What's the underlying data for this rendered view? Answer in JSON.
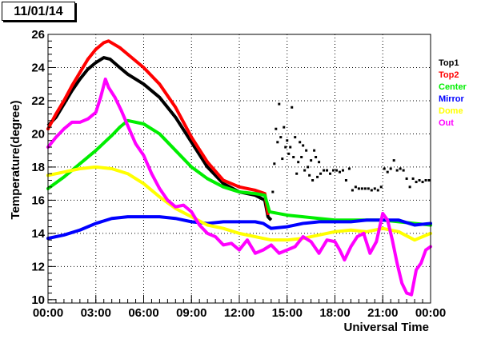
{
  "date_label": "11/01/14",
  "chart_data": {
    "type": "scatter",
    "title": "",
    "xlabel": "Universal Time",
    "ylabel": "Temperature(degree)",
    "xlim": [
      0,
      24
    ],
    "ylim": [
      9.8,
      26
    ],
    "x_ticks": [
      {
        "value": 0,
        "label": "00:00"
      },
      {
        "value": 3,
        "label": "03:00"
      },
      {
        "value": 6,
        "label": "06:00"
      },
      {
        "value": 9,
        "label": "09:00"
      },
      {
        "value": 12,
        "label": "12:00"
      },
      {
        "value": 15,
        "label": "15:00"
      },
      {
        "value": 18,
        "label": "18:00"
      },
      {
        "value": 21,
        "label": "21:00"
      },
      {
        "value": 24,
        "label": "00:00"
      }
    ],
    "y_ticks": [
      10,
      12,
      14,
      16,
      18,
      20,
      22,
      24,
      26
    ],
    "grid": {
      "x": true,
      "y": true,
      "style": "dotted"
    },
    "legend_position": "right",
    "series": [
      {
        "name": "Top1",
        "color": "#000000",
        "x": [
          0,
          0.5,
          1,
          1.5,
          2,
          2.5,
          3,
          3.5,
          3.9,
          4.5,
          5,
          6,
          7,
          8,
          9,
          10,
          11,
          12,
          13,
          13.6,
          13.8,
          13.9,
          14.0,
          14.1,
          14.2,
          14.3,
          14.4,
          14.5,
          14.6,
          14.7,
          14.8,
          14.9,
          15.0,
          15.1,
          15.2,
          15.3,
          15.4,
          15.5,
          15.6,
          15.7,
          15.8,
          15.9,
          16.0,
          16.1,
          16.2,
          16.3,
          16.4,
          16.5,
          16.6,
          16.7,
          16.8,
          16.9,
          17.0,
          17.1,
          17.3,
          17.5,
          17.7,
          17.9,
          18.1,
          18.3,
          18.5,
          18.7,
          18.9,
          19.1,
          19.3,
          19.5,
          19.7,
          19.9,
          20.1,
          20.3,
          20.5,
          20.7,
          20.9,
          21.1,
          21.3,
          21.5,
          21.7,
          21.9,
          22.1,
          22.3,
          22.5,
          22.7,
          22.9,
          23.1,
          23.3,
          23.5,
          23.7,
          23.9
        ],
        "y": [
          20.5,
          21.0,
          21.8,
          22.6,
          23.3,
          23.9,
          24.3,
          24.6,
          24.5,
          24.0,
          23.6,
          23.0,
          22.2,
          21.0,
          19.5,
          18.0,
          17.0,
          16.5,
          16.3,
          16.0,
          15.0,
          14.9,
          14.8,
          16.5,
          18.2,
          20.3,
          19.5,
          21.8,
          19.8,
          18.5,
          20.4,
          19.2,
          19.6,
          18.8,
          19.2,
          21.6,
          18.6,
          19.8,
          17.6,
          18.3,
          19.5,
          18.6,
          19.3,
          17.8,
          19.0,
          18.0,
          17.5,
          18.4,
          17.2,
          19.0,
          18.6,
          17.4,
          18.3,
          17.6,
          17.8,
          17.8,
          17.6,
          17.8,
          17.8,
          17.7,
          17.8,
          17.2,
          17.9,
          16.6,
          16.8,
          16.7,
          16.7,
          16.7,
          16.7,
          16.6,
          16.7,
          16.6,
          16.8,
          17.9,
          17.7,
          17.9,
          18.4,
          17.8,
          17.9,
          17.8,
          17.3,
          16.8,
          17.3,
          17.1,
          17.2,
          17.1,
          17.2,
          17.2
        ]
      },
      {
        "name": "Top2",
        "color": "#ff0000",
        "x": [
          0,
          0.5,
          1,
          1.5,
          2,
          2.5,
          3,
          3.5,
          3.8,
          4.5,
          5,
          6,
          7,
          8,
          9,
          10,
          11,
          12,
          13,
          13.6,
          13.8
        ],
        "y": [
          20.3,
          21.2,
          22.0,
          22.9,
          23.7,
          24.5,
          25.1,
          25.5,
          25.6,
          25.2,
          24.8,
          24.0,
          23.0,
          21.6,
          19.8,
          18.3,
          17.2,
          16.8,
          16.6,
          16.4,
          15.2
        ]
      },
      {
        "name": "Center",
        "color": "#00ee00",
        "x": [
          0,
          1,
          2,
          3,
          4,
          4.5,
          5,
          6,
          7,
          8,
          9,
          10,
          11,
          12,
          13,
          13.6,
          13.9,
          15,
          16,
          17,
          18,
          19,
          20,
          21,
          22,
          23,
          24
        ],
        "y": [
          16.7,
          17.4,
          18.2,
          19.0,
          19.9,
          20.4,
          20.8,
          20.6,
          20.0,
          19.0,
          18.0,
          17.3,
          16.8,
          16.5,
          16.4,
          16.3,
          15.3,
          15.1,
          15.0,
          14.9,
          14.8,
          14.8,
          14.8,
          14.8,
          14.7,
          14.6,
          14.5
        ]
      },
      {
        "name": "Mirror",
        "color": "#0000ff",
        "x": [
          0,
          1,
          2,
          3,
          4,
          5,
          6,
          7,
          8,
          9,
          10,
          11,
          12,
          13,
          13.5,
          14,
          15,
          16,
          17,
          18,
          19,
          20,
          21,
          22,
          23,
          24
        ],
        "y": [
          13.7,
          13.9,
          14.2,
          14.6,
          14.9,
          15.0,
          15.0,
          15.0,
          14.9,
          14.7,
          14.6,
          14.7,
          14.7,
          14.7,
          14.6,
          14.3,
          14.4,
          14.6,
          14.7,
          14.7,
          14.7,
          14.8,
          14.8,
          14.8,
          14.5,
          14.6
        ]
      },
      {
        "name": "Dome",
        "color": "#ffff00",
        "x": [
          0,
          1,
          2,
          3,
          4,
          5,
          6,
          7,
          8,
          9,
          10,
          11,
          12,
          13,
          14,
          15,
          16,
          17,
          18,
          19,
          20,
          21,
          22,
          23,
          24
        ],
        "y": [
          17.5,
          17.7,
          17.9,
          18.0,
          17.9,
          17.6,
          17.0,
          16.2,
          15.5,
          15.0,
          14.5,
          14.3,
          14.0,
          13.8,
          13.6,
          13.6,
          13.7,
          13.9,
          14.1,
          14.2,
          14.1,
          14.3,
          14.1,
          13.6,
          14.0
        ]
      },
      {
        "name": "Out",
        "color": "#ff00ff",
        "x": [
          0,
          0.5,
          1,
          1.5,
          2,
          2.5,
          3,
          3.3,
          3.6,
          3.8,
          4.2,
          4.6,
          5,
          5.5,
          6,
          6.5,
          7,
          7.5,
          8,
          8.5,
          9,
          9.5,
          10,
          10.5,
          11,
          11.5,
          12,
          12.5,
          13,
          13.5,
          14,
          14.5,
          15,
          15.5,
          16,
          16.5,
          17,
          17.5,
          18,
          18.3,
          18.6,
          19,
          19.4,
          19.8,
          20.2,
          20.6,
          21,
          21.3,
          21.6,
          21.9,
          22.2,
          22.5,
          22.8,
          23.1,
          23.4,
          23.7,
          24
        ],
        "y": [
          19.2,
          19.8,
          20.3,
          20.7,
          20.7,
          20.9,
          21.3,
          22.2,
          23.3,
          22.8,
          22.2,
          21.4,
          20.5,
          19.4,
          18.7,
          17.6,
          16.7,
          16.0,
          15.6,
          15.7,
          15.3,
          14.5,
          14.0,
          13.8,
          13.3,
          13.4,
          13.0,
          13.6,
          12.8,
          13.0,
          13.3,
          12.8,
          13.0,
          13.2,
          13.8,
          13.5,
          12.8,
          13.6,
          13.5,
          13.0,
          12.4,
          13.2,
          13.8,
          14.0,
          12.8,
          13.5,
          15.2,
          14.8,
          13.6,
          12.2,
          11.0,
          10.4,
          10.3,
          11.8,
          12.2,
          13.0,
          13.2
        ]
      }
    ]
  }
}
